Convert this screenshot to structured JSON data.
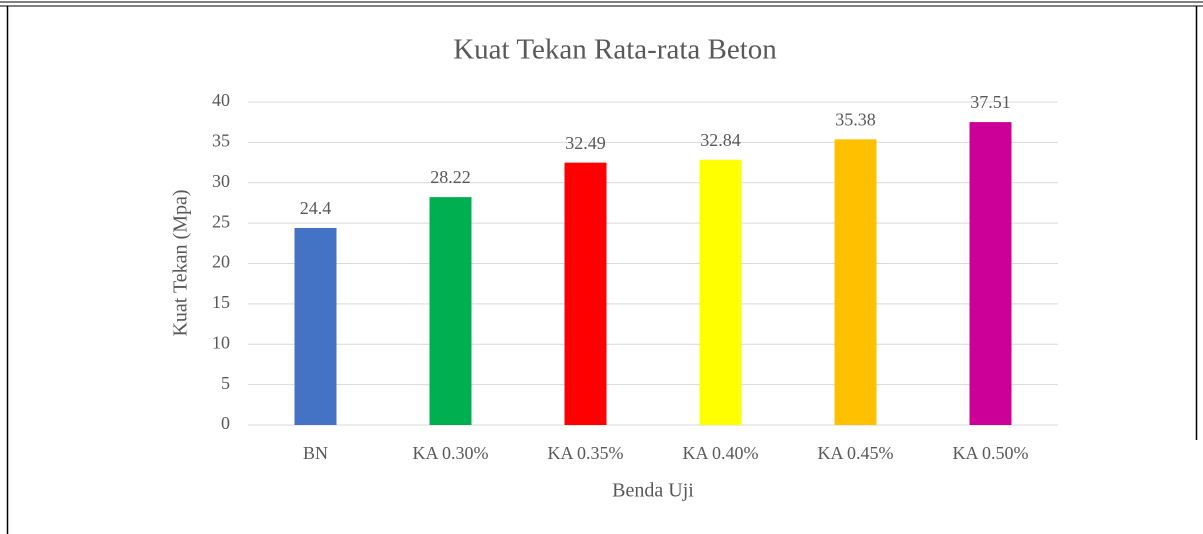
{
  "chart_data": {
    "type": "bar",
    "title": "Kuat Tekan Rata-rata Beton",
    "x_label": "Benda Uji",
    "y_label": "Kuat Tekan (Mpa)",
    "categories": [
      "BN",
      "KA 0.30%",
      "KA 0.35%",
      "KA 0.40%",
      "KA 0.45%",
      "KA 0.50%"
    ],
    "values": [
      24.4,
      28.22,
      32.49,
      32.84,
      35.38,
      37.51
    ],
    "colors": [
      "#4472c4",
      "#00b050",
      "#ff0000",
      "#ffff00",
      "#ffc000",
      "#cc0099"
    ],
    "ylim": [
      0,
      40
    ],
    "yticks": [
      0,
      5,
      10,
      15,
      20,
      25,
      30,
      35,
      40
    ],
    "grid": true
  }
}
